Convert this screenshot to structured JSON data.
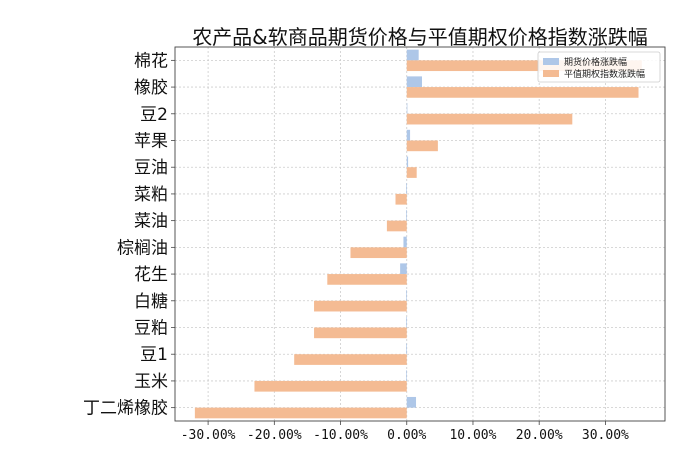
{
  "chart_data": {
    "type": "bar",
    "orientation": "horizontal",
    "title": "农产品&软商品期货价格与平值期权价格指数涨跌幅",
    "xlabel": "",
    "ylabel": "",
    "categories": [
      "棉花",
      "橡胶",
      "豆2",
      "苹果",
      "豆油",
      "菜粕",
      "菜油",
      "棕榈油",
      "花生",
      "白糖",
      "豆粕",
      "豆1",
      "玉米",
      "丁二烯橡胶"
    ],
    "series": [
      {
        "name": "期货价格涨跌幅",
        "color": "#aec7e8",
        "values": [
          1.8,
          2.3,
          0.0,
          0.5,
          0.2,
          -0.1,
          -0.1,
          -0.5,
          -1.0,
          -0.1,
          -0.1,
          -0.1,
          -0.1,
          1.4
        ]
      },
      {
        "name": "平值期权指数涨跌幅",
        "color": "#f4bb93",
        "values": [
          35.5,
          35.0,
          25.0,
          4.7,
          1.5,
          -1.7,
          -3.0,
          -8.5,
          -12.0,
          -14.0,
          -14.0,
          -17.0,
          -23.0,
          -32.0
        ]
      }
    ],
    "xlim": [
      -35,
      39
    ],
    "xticks": [
      "-30.00%",
      "-20.00%",
      "-10.00%",
      "0.00%",
      "10.00%",
      "20.00%",
      "30.00%"
    ],
    "xtick_values": [
      -30,
      -20,
      -10,
      0,
      10,
      20,
      30
    ],
    "grid": true,
    "legend_position": "top-right"
  }
}
